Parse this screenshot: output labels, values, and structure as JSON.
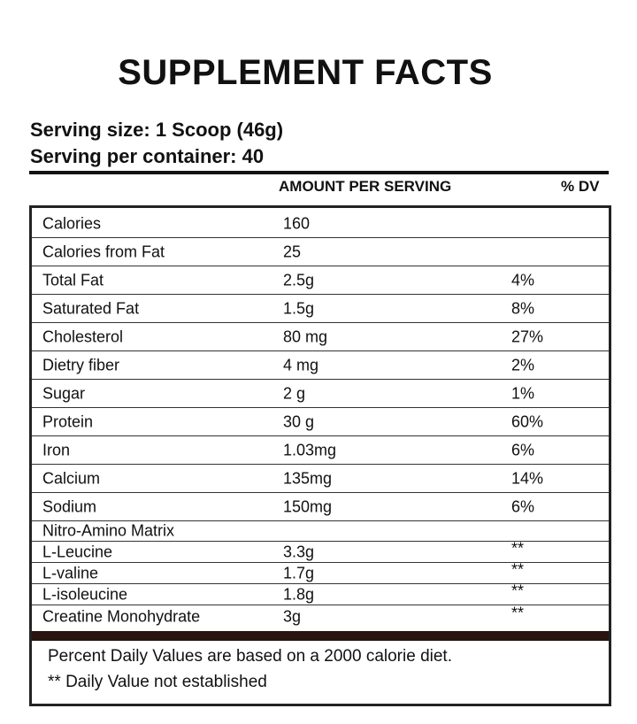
{
  "title": "SUPPLEMENT FACTS",
  "serving": [
    "Serving size: 1 Scoop (46g)",
    "Serving per container: 40"
  ],
  "header": [
    "AMOUNT PER SERVING",
    "% DV"
  ],
  "rows": [
    [
      "Calories",
      "160"
    ],
    [
      "Calories from Fat",
      "25"
    ],
    [
      "Total Fat",
      "2.5g",
      "4%"
    ],
    [
      "Saturated Fat",
      "1.5g",
      "8%"
    ],
    [
      "Cholesterol",
      "80 mg",
      "27%"
    ],
    [
      "Dietry fiber",
      "4 mg",
      "2%"
    ],
    [
      "Sugar",
      "2 g",
      "1%"
    ],
    [
      "Protein",
      "30 g",
      "60%"
    ],
    [
      "Iron",
      "1.03mg",
      "6%"
    ],
    [
      "Calcium",
      "135mg",
      "14%"
    ],
    [
      "Sodium",
      "150mg",
      "6%"
    ],
    [
      "Nitro-Amino Matrix"
    ],
    [
      "L-Leucine",
      "3.3g",
      "**"
    ],
    [
      "L-valine",
      "1.7g",
      "**"
    ],
    [
      "L-isoleucine",
      "1.8g",
      "**"
    ],
    [
      "Creatine Monohydrate",
      "3g",
      "**"
    ]
  ],
  "footer": [
    "Percent Daily Values are based on a 2000 calorie diet.",
    "** Daily Value not established"
  ]
}
